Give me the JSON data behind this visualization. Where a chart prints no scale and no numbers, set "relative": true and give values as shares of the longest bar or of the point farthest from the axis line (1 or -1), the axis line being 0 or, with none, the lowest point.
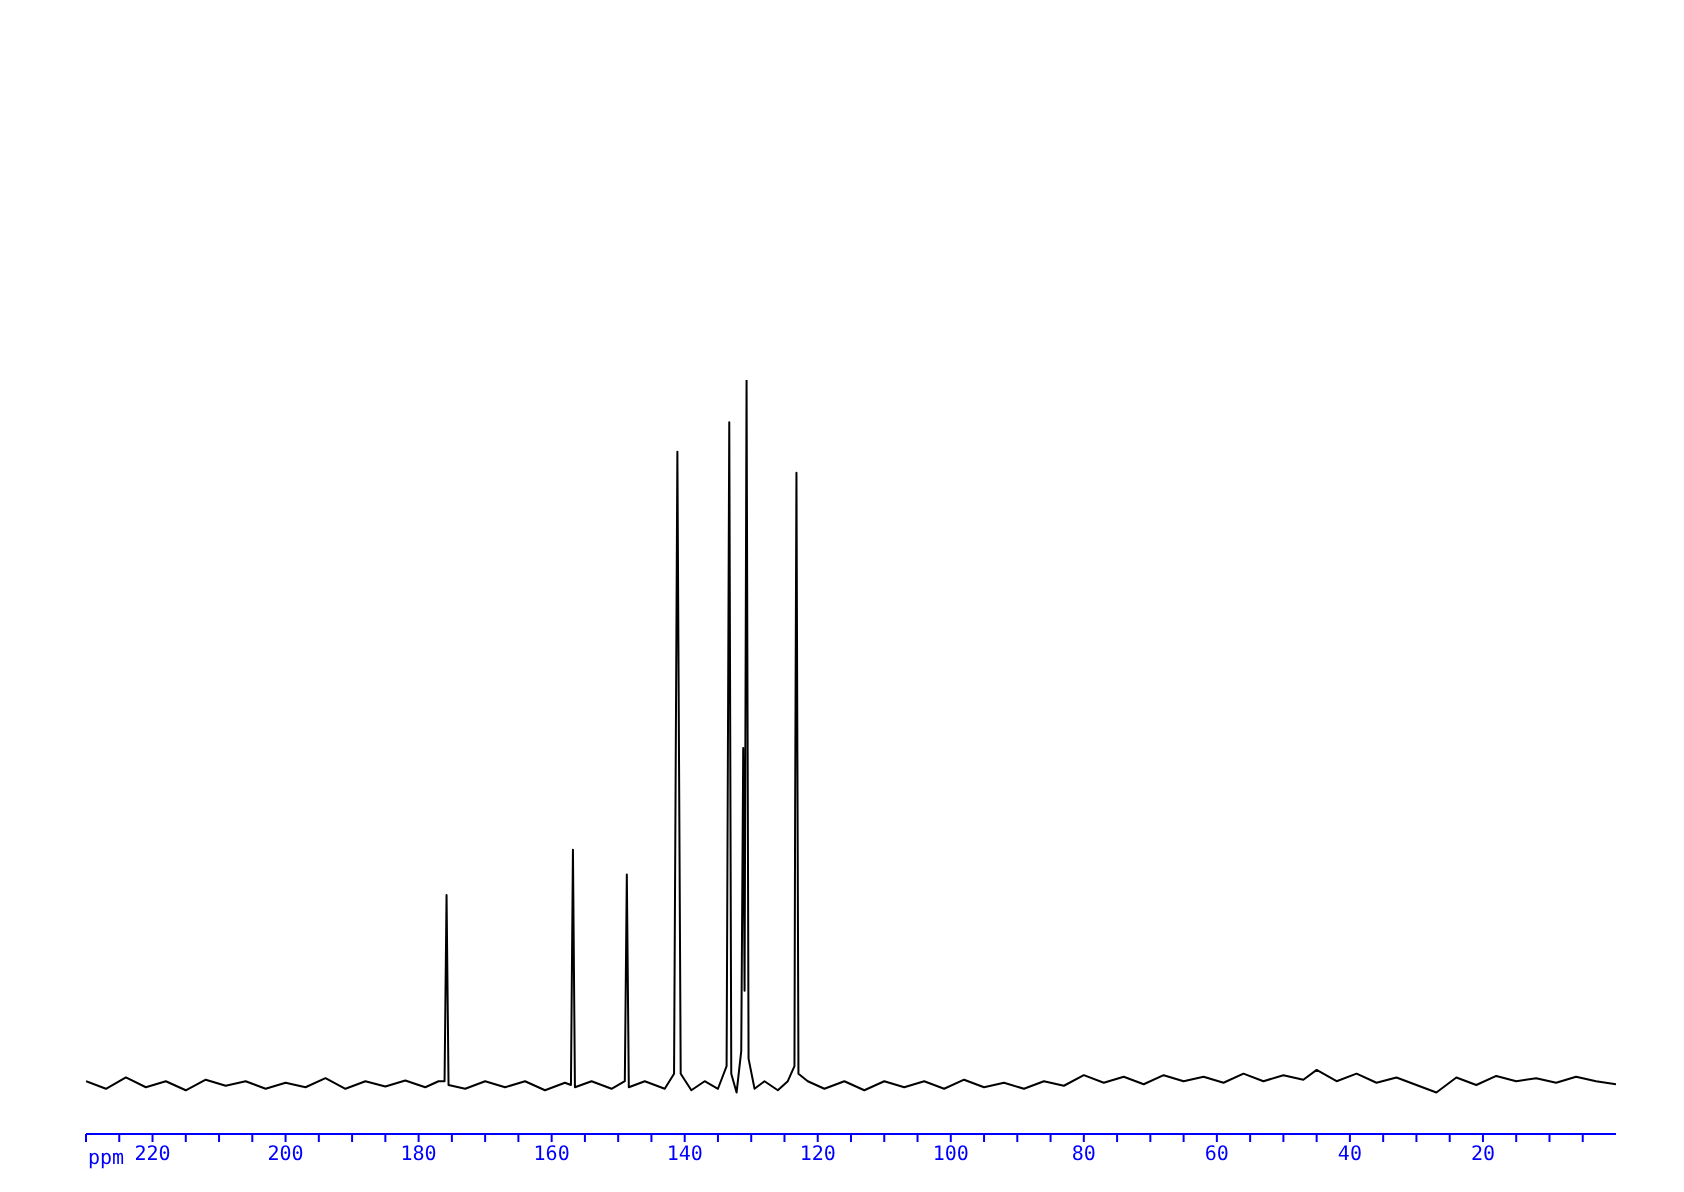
{
  "chart_data": {
    "type": "line",
    "relative": true,
    "xlabel": "ppm",
    "xlim": [
      230,
      0
    ],
    "xticks": [
      {
        "value": 230,
        "label": null
      },
      {
        "value": 225,
        "label": null
      },
      220,
      {
        "value": 215,
        "label": null
      },
      {
        "value": 210,
        "label": null
      },
      {
        "value": 205,
        "label": null
      },
      200,
      {
        "value": 195,
        "label": null
      },
      {
        "value": 190,
        "label": null
      },
      {
        "value": 185,
        "label": null
      },
      180,
      {
        "value": 175,
        "label": null
      },
      {
        "value": 170,
        "label": null
      },
      {
        "value": 165,
        "label": null
      },
      160,
      {
        "value": 155,
        "label": null
      },
      {
        "value": 150,
        "label": null
      },
      {
        "value": 145,
        "label": null
      },
      140,
      {
        "value": 135,
        "label": null
      },
      {
        "value": 130,
        "label": null
      },
      {
        "value": 125,
        "label": null
      },
      120,
      {
        "value": 115,
        "label": null
      },
      {
        "value": 110,
        "label": null
      },
      {
        "value": 105,
        "label": null
      },
      100,
      {
        "value": 95,
        "label": null
      },
      {
        "value": 90,
        "label": null
      },
      {
        "value": 85,
        "label": null
      },
      80,
      {
        "value": 75,
        "label": null
      },
      {
        "value": 70,
        "label": null
      },
      {
        "value": 65,
        "label": null
      },
      60,
      {
        "value": 55,
        "label": null
      },
      {
        "value": 50,
        "label": null
      },
      {
        "value": 45,
        "label": null
      },
      40,
      {
        "value": 35,
        "label": null
      },
      {
        "value": 30,
        "label": null
      },
      {
        "value": 25,
        "label": null
      },
      20,
      {
        "value": 15,
        "label": null
      },
      {
        "value": 10,
        "label": null
      },
      {
        "value": 5,
        "label": null
      }
    ],
    "grid": false,
    "marker": "none",
    "line_style": "solid",
    "series": [
      {
        "color": "#000000",
        "x": [
          230,
          227,
          224,
          221,
          218,
          215,
          212,
          209,
          206,
          203,
          200,
          197,
          194,
          191,
          188,
          185,
          182,
          179,
          177,
          176.1,
          175.8,
          175.5,
          173,
          170,
          167,
          164,
          161,
          158,
          157.1,
          156.8,
          156.5,
          154,
          151,
          149,
          148.7,
          148.4,
          146,
          143,
          141.6,
          141.1,
          140.6,
          139,
          137,
          135,
          133.7,
          133.3,
          133.0,
          132.2,
          131.5,
          131.2,
          131.0,
          130.7,
          130.4,
          129.5,
          128,
          126,
          124.5,
          123.5,
          123.4,
          123.2,
          122.9,
          121.5,
          119,
          116,
          113,
          110,
          107,
          104,
          101,
          98,
          95,
          92,
          89,
          86,
          83,
          80,
          77,
          74,
          71,
          68,
          65,
          62,
          59,
          56,
          53,
          50,
          47,
          45,
          42,
          39,
          36,
          33,
          30,
          27,
          24,
          21,
          18,
          15,
          12,
          9,
          6,
          3,
          0
        ],
        "values": [
          0.07,
          0.06,
          0.075,
          0.062,
          0.07,
          0.058,
          0.072,
          0.064,
          0.07,
          0.06,
          0.068,
          0.062,
          0.074,
          0.06,
          0.07,
          0.063,
          0.071,
          0.062,
          0.07,
          0.07,
          0.317,
          0.065,
          0.06,
          0.07,
          0.062,
          0.07,
          0.058,
          0.068,
          0.065,
          0.377,
          0.062,
          0.07,
          0.06,
          0.07,
          0.344,
          0.062,
          0.07,
          0.06,
          0.08,
          0.905,
          0.08,
          0.058,
          0.07,
          0.06,
          0.09,
          0.944,
          0.08,
          0.055,
          0.11,
          0.512,
          0.19,
          1,
          0.1,
          0.06,
          0.07,
          0.058,
          0.07,
          0.09,
          0.427,
          0.877,
          0.08,
          0.07,
          0.06,
          0.07,
          0.058,
          0.07,
          0.062,
          0.07,
          0.06,
          0.072,
          0.062,
          0.068,
          0.06,
          0.07,
          0.064,
          0.078,
          0.068,
          0.076,
          0.066,
          0.078,
          0.07,
          0.076,
          0.068,
          0.08,
          0.07,
          0.078,
          0.072,
          0.085,
          0.07,
          0.08,
          0.068,
          0.075,
          0.065,
          0.055,
          0.075,
          0.065,
          0.077,
          0.07,
          0.074,
          0.068,
          0.076,
          0.07,
          0.066
        ]
      }
    ]
  }
}
